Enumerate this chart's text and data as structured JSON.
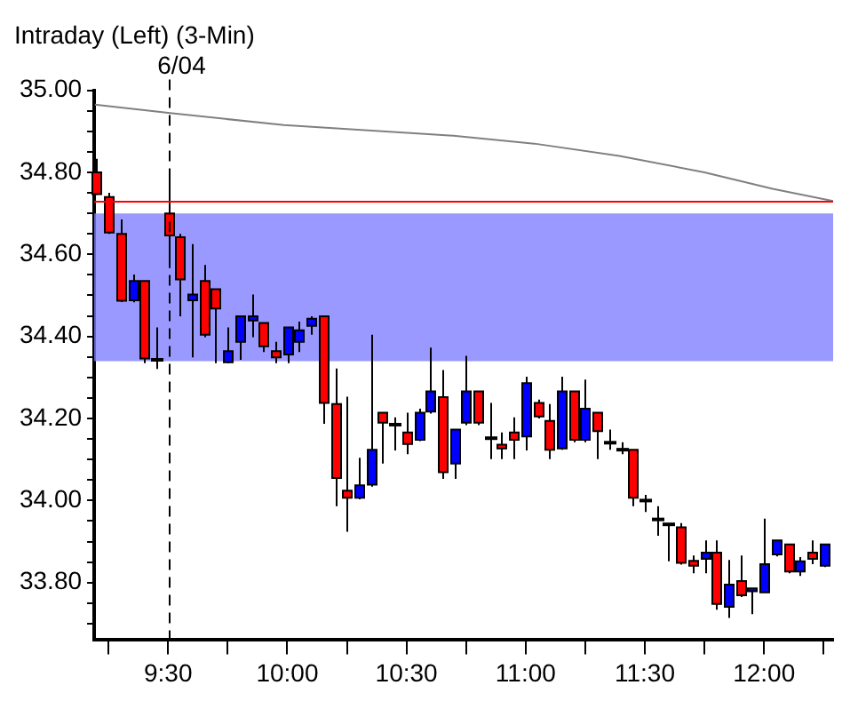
{
  "chart_data": {
    "type": "candlestick",
    "title": "Intraday (Left) (3-Min)",
    "x": [
      9.2,
      9.25,
      9.3,
      9.35,
      9.4,
      9.45,
      9.5,
      9.55,
      9.6,
      9.65,
      9.7,
      9.75,
      9.8,
      9.85,
      9.9,
      9.95,
      10.0,
      10.05,
      10.1,
      10.15,
      10.2,
      10.25,
      10.3,
      10.35,
      10.4,
      10.45,
      10.5,
      10.55,
      10.6,
      10.65,
      10.7,
      10.75,
      10.8,
      10.85,
      10.9,
      10.95,
      11.0,
      11.05,
      11.1,
      11.15,
      11.2,
      11.25,
      11.3,
      11.35,
      11.4,
      11.45,
      11.5,
      11.55,
      11.6,
      11.65,
      11.7,
      11.75,
      11.8,
      11.85,
      11.9,
      11.95,
      12.0,
      12.05,
      12.1,
      12.15,
      12.2,
      12.25
    ],
    "ohlc": [
      [
        34.8,
        34.833,
        34.745,
        34.747
      ],
      [
        34.74,
        34.75,
        34.65,
        34.653
      ],
      [
        34.65,
        34.685,
        34.484,
        34.487
      ],
      [
        34.488,
        34.551,
        34.483,
        34.535
      ],
      [
        34.535,
        34.535,
        34.335,
        34.346
      ],
      [
        34.343,
        34.422,
        34.321,
        34.343
      ],
      [
        34.7,
        34.8,
        34.567,
        34.646
      ],
      [
        34.642,
        34.65,
        34.449,
        34.539
      ],
      [
        34.488,
        34.625,
        34.349,
        34.502
      ],
      [
        34.535,
        34.574,
        34.398,
        34.404
      ],
      [
        34.515,
        34.515,
        34.335,
        34.468
      ],
      [
        34.337,
        34.422,
        34.335,
        34.364
      ],
      [
        34.387,
        34.449,
        34.343,
        34.449
      ],
      [
        34.439,
        34.502,
        34.398,
        34.449
      ],
      [
        34.433,
        34.433,
        34.362,
        34.376
      ],
      [
        34.364,
        34.387,
        34.335,
        34.349
      ],
      [
        34.356,
        34.422,
        34.335,
        34.422
      ],
      [
        34.387,
        34.436,
        34.362,
        34.415
      ],
      [
        34.426,
        34.449,
        34.404,
        34.443
      ],
      [
        34.449,
        34.449,
        34.187,
        34.238
      ],
      [
        34.235,
        34.322,
        33.986,
        34.055
      ],
      [
        34.024,
        34.253,
        33.924,
        34.007
      ],
      [
        34.007,
        34.104,
        34.003,
        34.037
      ],
      [
        34.039,
        34.404,
        34.034,
        34.124
      ],
      [
        34.214,
        34.214,
        34.09,
        34.19
      ],
      [
        34.185,
        34.203,
        34.122,
        34.185
      ],
      [
        34.166,
        34.214,
        34.113,
        34.138
      ],
      [
        34.148,
        34.224,
        34.145,
        34.214
      ],
      [
        34.217,
        34.373,
        34.212,
        34.266
      ],
      [
        34.252,
        34.318,
        34.053,
        34.069
      ],
      [
        34.09,
        34.173,
        34.053,
        34.173
      ],
      [
        34.19,
        34.353,
        34.184,
        34.266
      ],
      [
        34.266,
        34.266,
        34.184,
        34.19
      ],
      [
        34.152,
        34.238,
        34.101,
        34.152
      ],
      [
        34.136,
        34.166,
        34.101,
        34.127
      ],
      [
        34.166,
        34.203,
        34.101,
        34.148
      ],
      [
        34.156,
        34.302,
        34.122,
        34.286
      ],
      [
        34.238,
        34.246,
        34.2,
        34.205
      ],
      [
        34.194,
        34.235,
        34.101,
        34.124
      ],
      [
        34.127,
        34.302,
        34.124,
        34.266
      ],
      [
        34.266,
        34.266,
        34.142,
        34.148
      ],
      [
        34.148,
        34.295,
        34.142,
        34.224
      ],
      [
        34.214,
        34.214,
        34.101,
        34.169
      ],
      [
        34.141,
        34.173,
        34.124,
        34.141
      ],
      [
        34.124,
        34.142,
        34.113,
        34.124
      ],
      [
        34.124,
        34.124,
        33.986,
        34.007
      ],
      [
        34.0,
        34.014,
        33.972,
        34.0
      ],
      [
        33.954,
        33.986,
        33.914,
        33.954
      ],
      [
        33.942,
        33.942,
        33.852,
        33.942
      ],
      [
        33.935,
        33.945,
        33.844,
        33.848
      ],
      [
        33.853,
        33.866,
        33.823,
        33.841
      ],
      [
        33.858,
        33.903,
        33.823,
        33.873
      ],
      [
        33.873,
        33.903,
        33.734,
        33.748
      ],
      [
        33.741,
        33.855,
        33.714,
        33.795
      ],
      [
        33.804,
        33.866,
        33.765,
        33.769
      ],
      [
        33.779,
        33.786,
        33.723,
        33.786
      ],
      [
        33.776,
        33.956,
        33.776,
        33.845
      ],
      [
        33.869,
        33.903,
        33.864,
        33.903
      ],
      [
        33.893,
        33.893,
        33.823,
        33.827
      ],
      [
        33.827,
        33.862,
        33.816,
        33.852
      ],
      [
        33.873,
        33.903,
        33.845,
        33.858
      ],
      [
        33.841,
        33.893,
        33.838,
        33.893
      ]
    ],
    "colors": [
      "#ff0000",
      "#ff0000",
      "#ff0000",
      "#0000ff",
      "#ff0000",
      "#000000",
      "#ff0000",
      "#ff0000",
      "#0000ff",
      "#ff0000",
      "#ff0000",
      "#0000ff",
      "#0000ff",
      "#0000ff",
      "#ff0000",
      "#ff0000",
      "#0000ff",
      "#0000ff",
      "#0000ff",
      "#ff0000",
      "#ff0000",
      "#ff0000",
      "#0000ff",
      "#0000ff",
      "#ff0000",
      "#000000",
      "#ff0000",
      "#0000ff",
      "#0000ff",
      "#ff0000",
      "#0000ff",
      "#0000ff",
      "#ff0000",
      "#000000",
      "#ff0000",
      "#ff0000",
      "#0000ff",
      "#ff0000",
      "#ff0000",
      "#0000ff",
      "#ff0000",
      "#0000ff",
      "#ff0000",
      "#000000",
      "#000000",
      "#ff0000",
      "#000000",
      "#000000",
      "#000000",
      "#ff0000",
      "#ff0000",
      "#0000ff",
      "#ff0000",
      "#0000ff",
      "#ff0000",
      "#0000ff",
      "#0000ff",
      "#0000ff",
      "#ff0000",
      "#0000ff",
      "#ff0000",
      "#0000ff"
    ],
    "series": [
      {
        "type": "line",
        "color": "#808080",
        "x": [
          9.193,
          9.5,
          9.986,
          10.68,
          11.036,
          11.393,
          11.75,
          12.036,
          12.29
        ],
        "values": [
          34.965,
          34.945,
          34.915,
          34.89,
          34.87,
          34.84,
          34.8,
          34.76,
          34.73
        ]
      }
    ],
    "xlim": [
      9.19,
      12.29
    ],
    "xticks": [
      {
        "value": 9.25,
        "label": null
      },
      {
        "value": 9.5,
        "label": "9:30"
      },
      {
        "value": 9.75,
        "label": null
      },
      {
        "value": 10,
        "label": "10:00"
      },
      {
        "value": 10.25,
        "label": null
      },
      {
        "value": 10.5,
        "label": "10:30"
      },
      {
        "value": 10.75,
        "label": null
      },
      {
        "value": 11,
        "label": "11:00"
      },
      {
        "value": 11.25,
        "label": null
      },
      {
        "value": 11.5,
        "label": "11:30"
      },
      {
        "value": 11.75,
        "label": null
      },
      {
        "value": 12,
        "label": "12:00"
      },
      {
        "value": 12.25,
        "label": null
      }
    ],
    "ylim": [
      33.66,
      35.0
    ],
    "yticks": [
      {
        "value": 33.7,
        "label": null
      },
      {
        "value": 33.75,
        "label": null
      },
      {
        "value": 33.8,
        "label": "33.80"
      },
      {
        "value": 33.85,
        "label": null
      },
      {
        "value": 33.9,
        "label": null
      },
      {
        "value": 33.95,
        "label": null
      },
      {
        "value": 34.0,
        "label": "34.00"
      },
      {
        "value": 34.05,
        "label": null
      },
      {
        "value": 34.1,
        "label": null
      },
      {
        "value": 34.15,
        "label": null
      },
      {
        "value": 34.2,
        "label": "34.20"
      },
      {
        "value": 34.25,
        "label": null
      },
      {
        "value": 34.3,
        "label": null
      },
      {
        "value": 34.35,
        "label": null
      },
      {
        "value": 34.4,
        "label": "34.40"
      },
      {
        "value": 34.45,
        "label": null
      },
      {
        "value": 34.5,
        "label": null
      },
      {
        "value": 34.55,
        "label": null
      },
      {
        "value": 34.6,
        "label": "34.60"
      },
      {
        "value": 34.65,
        "label": null
      },
      {
        "value": 34.7,
        "label": null
      },
      {
        "value": 34.75,
        "label": null
      },
      {
        "value": 34.8,
        "label": "34.80"
      },
      {
        "value": 34.85,
        "label": null
      },
      {
        "value": 34.9,
        "label": null
      },
      {
        "value": 34.95,
        "label": null
      },
      {
        "value": 35.0,
        "label": "35.00"
      }
    ],
    "ref_lines": [
      {
        "axis": "y",
        "value": 34.73,
        "color": "#ff0000"
      },
      {
        "axis": "x",
        "value": 9.5,
        "color": "#000000",
        "line_style": "dashed"
      }
    ],
    "annotations": [
      "6/04"
    ],
    "bands": [
      {
        "axis": "y",
        "from": 34.34,
        "to": 34.7,
        "color": "#8080ff"
      }
    ],
    "grid": false,
    "legend": false
  }
}
